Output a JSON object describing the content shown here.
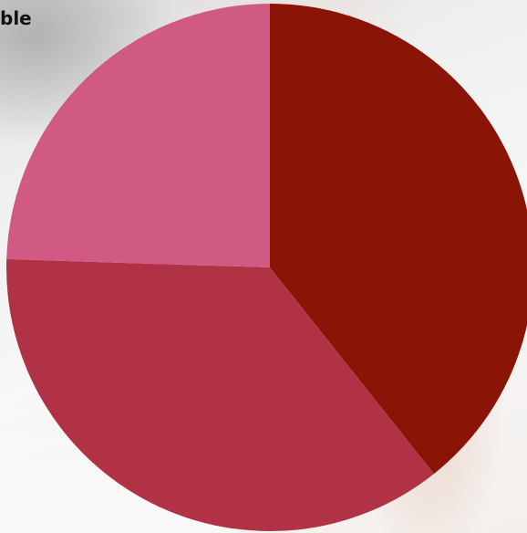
{
  "title_fragment": "ble",
  "chart_data": {
    "type": "pie",
    "title": "ble",
    "slices": [
      {
        "value": 39.3,
        "color": "#8a1406"
      },
      {
        "value": 36.2,
        "color": "#b03244"
      },
      {
        "value": 24.5,
        "color": "#d15a84"
      }
    ],
    "start_angle_deg": 0,
    "direction": "clockwise",
    "legend": "none"
  }
}
